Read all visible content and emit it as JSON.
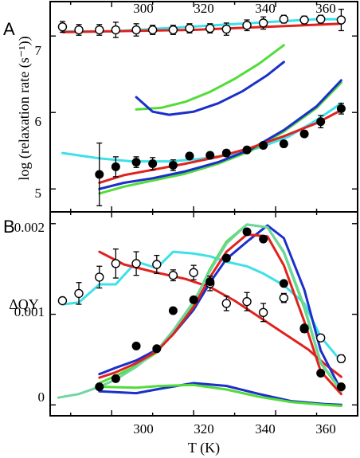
{
  "figure": {
    "x_axis_label": "T (K)",
    "x_ticks": [
      "300",
      "320",
      "340",
      "360"
    ],
    "top_x_ticks": [
      "300",
      "320",
      "340",
      "360"
    ]
  },
  "colors": {
    "red": "#e0221e",
    "cyan": "#3ee0ea",
    "blue": "#1c2fc8",
    "green": "#52dc3a",
    "teal": "#6fd6a0"
  },
  "chart_data": [
    {
      "type": "line",
      "panel_label": "A",
      "ylabel": "log (relaxation rate (s⁻¹))",
      "xlim": [
        285,
        360
      ],
      "ylim": [
        4.7,
        7.45
      ],
      "x_ticks": [
        300,
        320,
        340,
        360
      ],
      "y_ticks": [
        5,
        6,
        7
      ],
      "y_tick_labels": [
        "5",
        "6",
        "7"
      ],
      "series": [
        {
          "style": "line",
          "color": "cyan",
          "x": [
            288,
            300,
            350,
            356
          ],
          "y": [
            7.06,
            7.06,
            7.22,
            7.22
          ]
        },
        {
          "style": "line",
          "color": "red",
          "x": [
            288,
            320,
            356
          ],
          "y": [
            7.05,
            7.08,
            7.16
          ]
        },
        {
          "style": "line",
          "color": "green",
          "x": [
            306,
            312,
            318,
            324,
            330,
            336,
            342
          ],
          "y": [
            6.04,
            6.06,
            6.14,
            6.27,
            6.44,
            6.64,
            6.88
          ]
        },
        {
          "style": "line",
          "color": "blue",
          "x": [
            306,
            310,
            314,
            320,
            326,
            332,
            338,
            342
          ],
          "y": [
            6.2,
            6.01,
            5.97,
            6.01,
            6.12,
            6.28,
            6.49,
            6.66
          ]
        },
        {
          "style": "line",
          "color": "cyan",
          "x": [
            288,
            297,
            305,
            314,
            321,
            328,
            336,
            343,
            350,
            356
          ],
          "y": [
            5.47,
            5.4,
            5.36,
            5.36,
            5.39,
            5.44,
            5.54,
            5.68,
            5.9,
            6.12
          ]
        },
        {
          "style": "line",
          "color": "green",
          "x": [
            297,
            303,
            310,
            318,
            326,
            334,
            342,
            350,
            356
          ],
          "y": [
            4.94,
            5.03,
            5.11,
            5.2,
            5.33,
            5.5,
            5.75,
            6.06,
            6.39
          ]
        },
        {
          "style": "line",
          "color": "blue",
          "x": [
            297,
            303,
            310,
            318,
            326,
            334,
            342,
            350,
            356
          ],
          "y": [
            5.0,
            5.08,
            5.14,
            5.23,
            5.35,
            5.52,
            5.77,
            6.08,
            6.42
          ]
        },
        {
          "style": "line",
          "color": "red",
          "x": [
            297,
            303,
            310,
            318,
            326,
            334,
            342,
            350,
            356
          ],
          "y": [
            5.08,
            5.18,
            5.25,
            5.33,
            5.42,
            5.54,
            5.69,
            5.86,
            6.03
          ]
        },
        {
          "style": "open",
          "x": [
            288,
            292,
            297,
            301,
            306,
            310,
            315,
            319,
            324,
            328,
            333,
            337,
            342,
            347,
            351,
            356
          ],
          "y": [
            7.12,
            7.08,
            7.08,
            7.08,
            7.08,
            7.08,
            7.08,
            7.1,
            7.1,
            7.09,
            7.14,
            7.17,
            7.22,
            7.21,
            7.22,
            7.21
          ],
          "err": [
            0.07,
            0.07,
            0.07,
            0.1,
            0.08,
            0.06,
            0.06,
            0.06,
            0.06,
            0.08,
            0.07,
            0.08,
            0.05,
            0.05,
            0.05,
            0.14
          ]
        },
        {
          "style": "filled",
          "x": [
            297,
            301,
            306,
            310,
            315,
            319,
            324,
            328,
            333,
            337,
            342,
            347,
            351,
            356
          ],
          "y": [
            5.19,
            5.29,
            5.35,
            5.33,
            5.31,
            5.43,
            5.44,
            5.47,
            5.51,
            5.57,
            5.59,
            5.72,
            5.88,
            6.05
          ],
          "err": [
            0.41,
            0.13,
            0.07,
            0.08,
            0.07,
            0.04,
            0.04,
            0.04,
            0.04,
            0.04,
            0.04,
            0.04,
            0.08,
            0.07
          ]
        }
      ]
    },
    {
      "type": "line",
      "panel_label": "B",
      "ylabel": "ΔQY",
      "xlim": [
        285,
        360
      ],
      "ylim": [
        -0.00012,
        0.00213
      ],
      "x_ticks": [
        300,
        320,
        340,
        360
      ],
      "y_ticks": [
        0,
        0.001,
        0.002
      ],
      "y_tick_labels": [
        "0",
        "0.001",
        "0.002"
      ],
      "series": [
        {
          "style": "line",
          "color": "cyan",
          "x": [
            288,
            292,
            297,
            301,
            306,
            311,
            315,
            320,
            324,
            328,
            333,
            337,
            342,
            347,
            351,
            356
          ],
          "y": [
            0.00111,
            0.00113,
            0.00133,
            0.00133,
            0.00158,
            0.00151,
            0.00169,
            0.00167,
            0.00164,
            0.00158,
            0.00153,
            0.00145,
            0.00132,
            0.00112,
            0.00075,
            0.00048
          ]
        },
        {
          "style": "line",
          "color": "red",
          "x": [
            297,
            303,
            310,
            318,
            324,
            330,
            336,
            342,
            348,
            352,
            356
          ],
          "y": [
            0.00169,
            0.00155,
            0.00147,
            0.00139,
            0.0013,
            0.00115,
            0.00097,
            0.00079,
            0.00061,
            0.00045,
            0.00031
          ]
        },
        {
          "style": "line",
          "color": "blue",
          "x": [
            297,
            301,
            306,
            311,
            315,
            320,
            324,
            328,
            333,
            338,
            342,
            347,
            351,
            356
          ],
          "y": [
            0.00034,
            0.00041,
            0.00049,
            0.00061,
            0.00078,
            0.00105,
            0.00135,
            0.00161,
            0.0018,
            0.00198,
            0.00184,
            0.00127,
            0.0006,
            0.00016
          ]
        },
        {
          "style": "line",
          "color": "green",
          "x": [
            297,
            301,
            306,
            311,
            315,
            320,
            324,
            328,
            333,
            338,
            342,
            347,
            351,
            356
          ],
          "y": [
            0.00024,
            0.00032,
            0.00043,
            0.00058,
            0.0008,
            0.00112,
            0.0015,
            0.0018,
            0.00199,
            0.00196,
            0.00168,
            0.00107,
            0.00046,
            0.00015
          ]
        },
        {
          "style": "line",
          "color": "teal",
          "x": [
            287,
            292,
            297,
            301,
            306,
            311,
            315,
            320,
            324,
            328,
            333,
            338,
            342,
            347,
            351,
            356
          ],
          "y": [
            8e-05,
            0.00012,
            0.0002,
            0.00028,
            0.00042,
            0.0006,
            0.00082,
            0.00114,
            0.00148,
            0.00178,
            0.00199,
            0.00196,
            0.00169,
            0.00109,
            0.00047,
            0.00016
          ]
        },
        {
          "style": "line",
          "color": "red",
          "x": [
            297,
            301,
            306,
            311,
            315,
            320,
            324,
            328,
            333,
            338,
            342,
            347,
            351,
            356
          ],
          "y": [
            0.0003,
            0.00036,
            0.00046,
            0.00059,
            0.00078,
            0.00108,
            0.00141,
            0.00169,
            0.00188,
            0.00186,
            0.00154,
            0.00092,
            0.00037,
            0.00012
          ]
        },
        {
          "style": "line",
          "color": "blue",
          "x": [
            297,
            306,
            312,
            320,
            328,
            336,
            344,
            352,
            356
          ],
          "y": [
            0.00015,
            0.00013,
            0.00018,
            0.00024,
            0.00021,
            0.00012,
            4e-05,
            1e-05,
            0.0
          ]
        },
        {
          "style": "line",
          "color": "green",
          "x": [
            297,
            306,
            312,
            320,
            328,
            336,
            344,
            352,
            356
          ],
          "y": [
            0.0002,
            0.00019,
            0.00021,
            0.00022,
            0.00017,
            9e-05,
            3e-05,
            0.0,
            -1e-05
          ]
        },
        {
          "style": "open",
          "x": [
            288,
            292,
            297,
            301,
            306,
            311,
            315,
            320,
            324,
            328,
            333,
            337,
            342,
            347,
            351,
            356
          ],
          "y": [
            0.00115,
            0.00123,
            0.00141,
            0.00156,
            0.00156,
            0.00155,
            0.00143,
            0.00146,
            0.00134,
            0.00112,
            0.00114,
            0.00102,
            0.00118,
            0.00084,
            0.00074,
            0.00051
          ],
          "err": [
            3e-05,
            0.00012,
            0.00012,
            0.00016,
            0.00013,
            0.0001,
            6e-05,
            8e-05,
            8e-05,
            8e-05,
            0.0001,
            0.0001,
            5e-05,
            4e-05,
            3e-05,
            4e-05
          ]
        },
        {
          "style": "filled",
          "x": [
            297,
            301,
            306,
            311,
            315,
            320,
            324,
            328,
            333,
            337,
            342,
            347,
            351,
            356
          ],
          "y": [
            0.0002,
            0.00029,
            0.00065,
            0.00062,
            0.00104,
            0.00116,
            0.00136,
            0.00162,
            0.00191,
            0.00183,
            0.00134,
            0.00085,
            0.00035,
            0.0002
          ]
        }
      ]
    }
  ]
}
